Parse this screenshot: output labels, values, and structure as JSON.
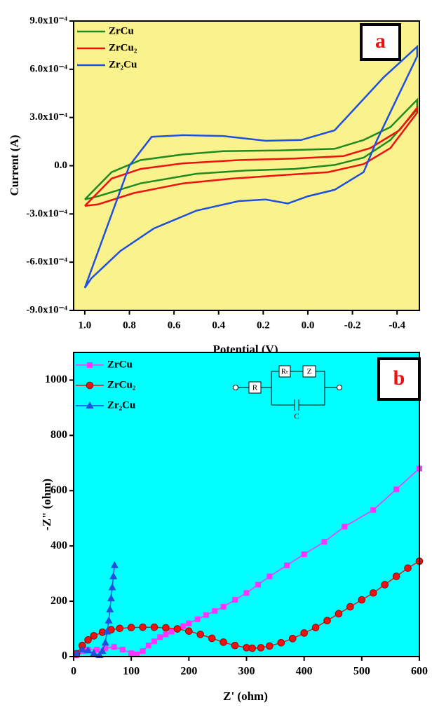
{
  "chart_data": [
    {
      "type": "line",
      "x_label": "Potential (V)",
      "y_label": "Current (A)",
      "background": "#faf28c",
      "annotation": "a",
      "legend": "upper left",
      "xlim": [
        1.05,
        -0.5
      ],
      "ylim": [
        -0.0009,
        0.0009
      ],
      "xticks": [
        {
          "value": 1.0,
          "label": "1.0"
        },
        {
          "value": 0.8,
          "label": "0.8"
        },
        {
          "value": 0.6,
          "label": "0.6"
        },
        {
          "value": 0.4,
          "label": "0.4"
        },
        {
          "value": 0.2,
          "label": "0.2"
        },
        {
          "value": 0.0,
          "label": "0.0"
        },
        {
          "value": -0.2,
          "label": "-0.2"
        },
        {
          "value": -0.4,
          "label": "-0.4"
        }
      ],
      "yticks": [
        {
          "value": 0.0009,
          "label": "9.0x10⁻⁴"
        },
        {
          "value": 0.0006,
          "label": "6.0x10⁻⁴"
        },
        {
          "value": 0.0003,
          "label": "3.0x10⁻⁴"
        },
        {
          "value": 0,
          "label": "0.0"
        },
        {
          "value": -0.0003,
          "label": "-3.0x10⁻⁴"
        },
        {
          "value": -0.0006,
          "label": "-6.0x10⁻⁴"
        },
        {
          "value": -0.0009,
          "label": "-9.0x10⁻⁴"
        }
      ],
      "series": [
        {
          "name": "ZrCu",
          "color": "#1f8a1f",
          "x": [
            1.0,
            0.88,
            0.75,
            0.56,
            0.38,
            0.13,
            -0.12,
            -0.25,
            -0.37,
            -0.49,
            -0.49,
            -0.37,
            -0.25,
            -0.12,
            0.06,
            0.28,
            0.5,
            0.75,
            0.94,
            1.0
          ],
          "values": [
            -0.00021,
            -4e-05,
            3.5e-05,
            7e-05,
            9e-05,
            9.5e-05,
            0.000105,
            0.00016,
            0.00024,
            0.00041,
            0.00035,
            0.00016,
            5e-05,
            5e-06,
            -2e-05,
            -3e-05,
            -5e-05,
            -0.00011,
            -0.00019,
            -0.00021
          ]
        },
        {
          "name": "ZrCu₂",
          "color": "#ee1111",
          "x": [
            1.0,
            0.88,
            0.75,
            0.56,
            0.31,
            0.06,
            -0.16,
            -0.28,
            -0.41,
            -0.49,
            -0.49,
            -0.37,
            -0.25,
            -0.09,
            0.13,
            0.34,
            0.56,
            0.78,
            0.94,
            1.0
          ],
          "values": [
            -0.00025,
            -8e-05,
            -2e-05,
            1.5e-05,
            3.5e-05,
            4.5e-05,
            6e-05,
            0.00011,
            0.00022,
            0.00036,
            0.00033,
            0.00011,
            1e-05,
            -4e-05,
            -6e-05,
            -8e-05,
            -0.00011,
            -0.00017,
            -0.00024,
            -0.00025
          ]
        },
        {
          "name": "Zr₂Cu",
          "color": "#1f4fe0",
          "x": [
            1.0,
            0.8,
            0.7,
            0.56,
            0.38,
            0.19,
            0.03,
            -0.12,
            -0.22,
            -0.34,
            -0.49,
            -0.49,
            -0.4,
            -0.31,
            -0.25,
            -0.12,
            0.0,
            0.09,
            0.19,
            0.31,
            0.5,
            0.69,
            0.84,
            0.97,
            1.0
          ],
          "values": [
            -0.00076,
            0.0,
            0.00018,
            0.00019,
            0.000185,
            0.000155,
            0.00016,
            0.00022,
            0.00037,
            0.00055,
            0.00074,
            0.00068,
            0.00042,
            0.00016,
            -4e-05,
            -0.00015,
            -0.00019,
            -0.000235,
            -0.00021,
            -0.00022,
            -0.00028,
            -0.00039,
            -0.00053,
            -0.0007,
            -0.00076
          ]
        }
      ]
    },
    {
      "type": "scatter",
      "x_label": "Z' (ohm)",
      "y_label": "-Z\" (ohm)",
      "background": "#00ffff",
      "annotation": "b",
      "legend": "upper left",
      "circuit_labels": [
        "R",
        "Rₜ",
        "Z",
        "C"
      ],
      "xlim": [
        0,
        600
      ],
      "ylim": [
        0,
        1100
      ],
      "xticks": [
        0,
        100,
        200,
        300,
        400,
        500,
        600
      ],
      "yticks": [
        0,
        200,
        400,
        600,
        800,
        1000
      ],
      "series": [
        {
          "name": "ZrCu",
          "color": "#ff33ff",
          "marker": "square",
          "x": [
            5,
            15,
            25,
            40,
            55,
            70,
            85,
            100,
            110,
            120,
            130,
            140,
            150,
            160,
            170,
            180,
            190,
            200,
            215,
            230,
            245,
            260,
            280,
            300,
            320,
            340,
            370,
            400,
            435,
            470,
            520,
            560,
            600
          ],
          "values": [
            5,
            20,
            25,
            25,
            30,
            35,
            25,
            12,
            8,
            20,
            40,
            55,
            70,
            80,
            90,
            100,
            110,
            120,
            135,
            150,
            165,
            180,
            205,
            230,
            260,
            290,
            330,
            370,
            415,
            470,
            530,
            605,
            680
          ]
        },
        {
          "name": "ZrCu₂",
          "color": "#ee1111",
          "marker": "circle",
          "x": [
            5,
            15,
            25,
            35,
            50,
            65,
            80,
            100,
            120,
            140,
            160,
            180,
            200,
            220,
            240,
            260,
            280,
            300,
            310,
            325,
            340,
            360,
            380,
            400,
            420,
            440,
            460,
            480,
            500,
            520,
            540,
            560,
            580,
            600
          ],
          "values": [
            10,
            40,
            60,
            75,
            88,
            97,
            102,
            105,
            106,
            106,
            104,
            100,
            92,
            80,
            66,
            52,
            40,
            32,
            30,
            32,
            38,
            50,
            65,
            85,
            105,
            130,
            155,
            180,
            205,
            230,
            260,
            290,
            320,
            345
          ]
        },
        {
          "name": "Zr₂Cu",
          "color": "#1f4fe0",
          "marker": "triangle",
          "x": [
            5,
            15,
            25,
            35,
            45,
            50,
            55,
            58,
            61,
            63,
            65,
            67,
            69,
            71
          ],
          "values": [
            10,
            25,
            22,
            12,
            5,
            20,
            50,
            90,
            130,
            170,
            210,
            250,
            290,
            330
          ]
        }
      ]
    }
  ]
}
